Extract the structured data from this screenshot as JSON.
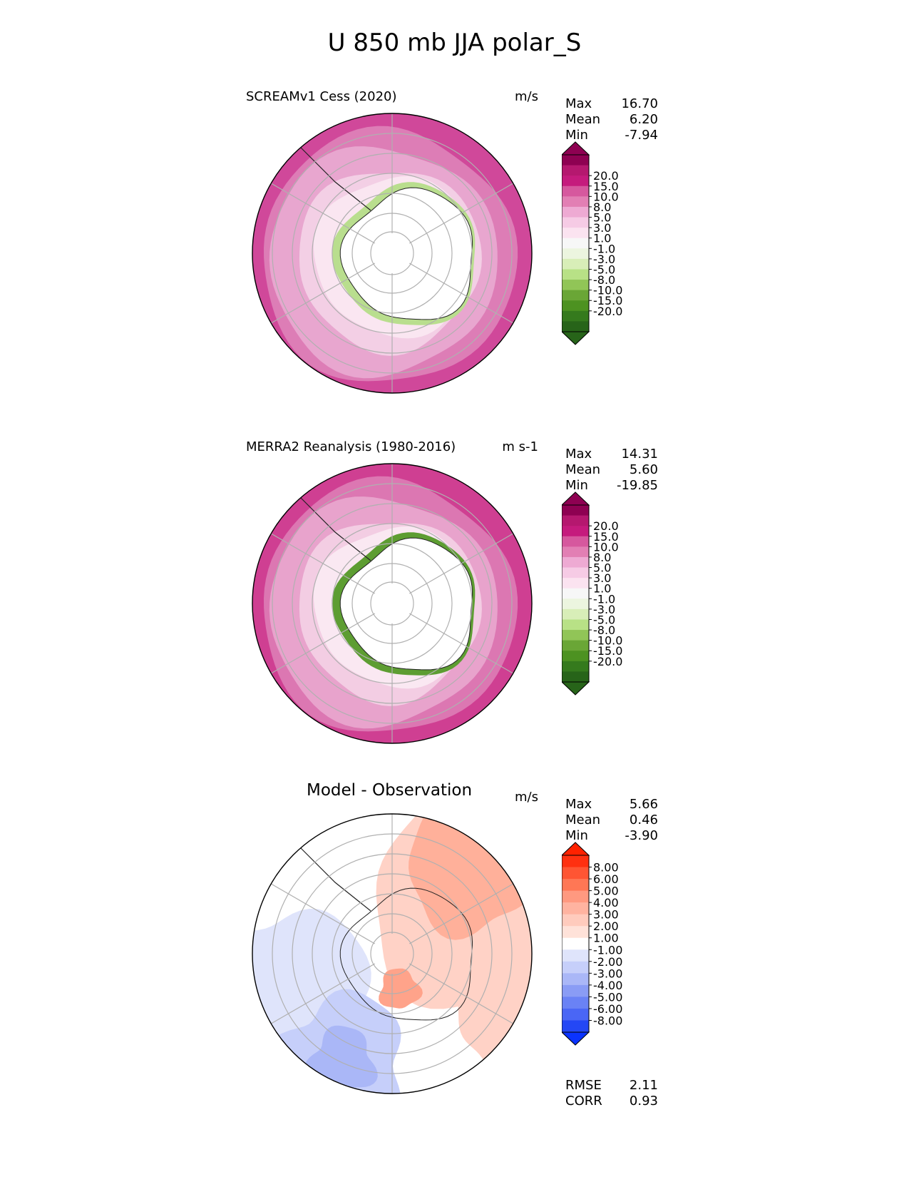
{
  "title": "U 850 mb JJA polar_S",
  "panels": [
    {
      "id": "model",
      "title": "SCREAMv1 Cess (2020)",
      "units": "m/s",
      "stats": {
        "max_label": "Max",
        "max": "16.70",
        "mean_label": "Mean",
        "mean": "6.20",
        "min_label": "Min",
        "min": "-7.94"
      },
      "colorbar": {
        "labels": [
          "20.0",
          "15.0",
          "10.0",
          "8.0",
          "5.0",
          "3.0",
          "1.0",
          "-1.0",
          "-3.0",
          "-5.0",
          "-8.0",
          "-10.0",
          "-15.0",
          "-20.0"
        ],
        "colors": [
          "#8e0152",
          "#b5186f",
          "#c51b7d",
          "#d6589e",
          "#e27fb4",
          "#eeaad3",
          "#f6cbe5",
          "#fbe3f0",
          "#f7f7f7",
          "#ecf5df",
          "#d8eeb8",
          "#b8e186",
          "#91c557",
          "#6aa636",
          "#4d9221",
          "#357a1d",
          "#276419"
        ],
        "ext_top": "#8e0152",
        "ext_bottom": "#276419"
      },
      "map_colors": {
        "outer": "#d0489a",
        "ring2": "#dd7db6",
        "ring3": "#e8a6cf",
        "ring4": "#f3cfe5",
        "ring5": "#fae6f1",
        "land": "#ffffff",
        "coast_green": "#b9de8e"
      }
    },
    {
      "id": "obs",
      "title": "MERRA2 Reanalysis (1980-2016)",
      "units": "m s-1",
      "stats": {
        "max_label": "Max",
        "max": "14.31",
        "mean_label": "Mean",
        "mean": "5.60",
        "min_label": "Min",
        "min": "-19.85"
      },
      "colorbar": {
        "labels": [
          "20.0",
          "15.0",
          "10.0",
          "8.0",
          "5.0",
          "3.0",
          "1.0",
          "-1.0",
          "-3.0",
          "-5.0",
          "-8.0",
          "-10.0",
          "-15.0",
          "-20.0"
        ],
        "colors": [
          "#8e0152",
          "#b5186f",
          "#c51b7d",
          "#d6589e",
          "#e27fb4",
          "#eeaad3",
          "#f6cbe5",
          "#fbe3f0",
          "#f7f7f7",
          "#ecf5df",
          "#d8eeb8",
          "#b8e186",
          "#91c557",
          "#6aa636",
          "#4d9221",
          "#357a1d",
          "#276419"
        ],
        "ext_top": "#8e0152",
        "ext_bottom": "#276419"
      },
      "map_colors": {
        "outer": "#cf3f92",
        "ring2": "#dc77b2",
        "ring3": "#e8a3cc",
        "ring4": "#f3cde3",
        "ring5": "#fae8f2",
        "land": "#ffffff",
        "coast_green": "#5d9d32"
      }
    },
    {
      "id": "diff",
      "title": "Model - Observation",
      "units": "m/s",
      "stats": {
        "max_label": "Max",
        "max": "5.66",
        "mean_label": "Mean",
        "mean": "0.46",
        "min_label": "Min",
        "min": "-3.90"
      },
      "colorbar": {
        "labels": [
          "8.00",
          "6.00",
          "5.00",
          "4.00",
          "3.00",
          "2.00",
          "1.00",
          "-1.00",
          "-2.00",
          "-3.00",
          "-4.00",
          "-5.00",
          "-6.00",
          "-8.00"
        ],
        "colors": [
          "#ff3010",
          "#ff5533",
          "#ff7755",
          "#ff9980",
          "#ffb3a0",
          "#ffcbbd",
          "#ffe2d9",
          "#ffffff",
          "#dfe4fb",
          "#c6cffa",
          "#aab7f7",
          "#8a9cf5",
          "#6a82f5",
          "#4a66f5",
          "#2447f5"
        ],
        "ext_top": "#ff2200",
        "ext_bottom": "#0a33ff"
      },
      "map_colors": {
        "outer": "#ffd6cc",
        "ring2": "#ffffff",
        "ring3": "#ffffff",
        "ring4": "#ffffff",
        "ring5": "#ffffff",
        "land": "#ffffff",
        "coast_green": "#ffffff"
      },
      "metrics": {
        "rmse_label": "RMSE",
        "rmse": "2.11",
        "corr_label": "CORR",
        "corr": "0.93"
      }
    }
  ]
}
